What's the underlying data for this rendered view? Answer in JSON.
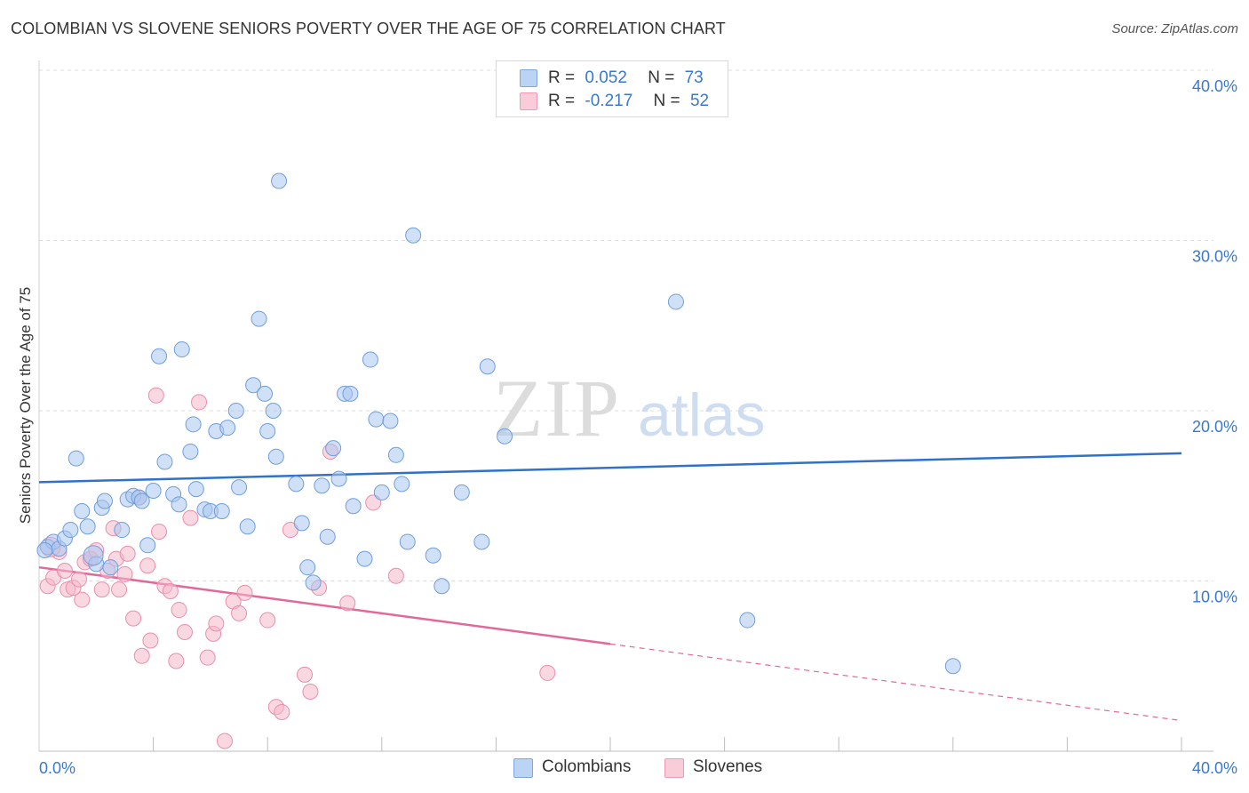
{
  "header": {
    "title": "COLOMBIAN VS SLOVENE SENIORS POVERTY OVER THE AGE OF 75 CORRELATION CHART",
    "source": "Source: ZipAtlas.com"
  },
  "legend": {
    "r_label": "R =",
    "n_label": "N =",
    "colombians": {
      "r": "0.052",
      "n": "73"
    },
    "slovenes": {
      "r": "-0.217",
      "n": "52"
    }
  },
  "watermark": {
    "zip": "ZIP",
    "atlas": "atlas"
  },
  "colors": {
    "blue_fill": "#a9c7f0",
    "blue_stroke": "#6f9fdc",
    "blue_line": "#2f72c8",
    "pink_fill": "#f5b8cb",
    "pink_stroke": "#ea8faa",
    "pink_line": "#e2689a",
    "axis_label": "#3a78d0"
  },
  "chart_data": {
    "type": "scatter",
    "title": "COLOMBIAN VS SLOVENE SENIORS POVERTY OVER THE AGE OF 75 CORRELATION CHART",
    "xlabel": "",
    "ylabel": "Seniors Poverty Over the Age of 75",
    "xlim": [
      0,
      40
    ],
    "ylim": [
      0,
      40
    ],
    "x_tick_labels": [
      "0.0%",
      "40.0%"
    ],
    "y_tick_labels": [
      "10.0%",
      "20.0%",
      "30.0%",
      "40.0%"
    ],
    "y_ticks": [
      10,
      20,
      30,
      40
    ],
    "grid": true,
    "legend_position": "top-center",
    "series": [
      {
        "name": "Colombians",
        "color": "#a9c7f0",
        "r": 0.052,
        "n": 73,
        "trend": {
          "x": [
            0,
            40
          ],
          "y": [
            15.8,
            17.5
          ],
          "style": "solid"
        },
        "points": [
          [
            0.3,
            12.0
          ],
          [
            0.5,
            12.3
          ],
          [
            0.7,
            11.9
          ],
          [
            0.9,
            12.5
          ],
          [
            1.1,
            13.0
          ],
          [
            1.3,
            17.2
          ],
          [
            1.5,
            14.1
          ],
          [
            1.7,
            13.2
          ],
          [
            2.0,
            11.0
          ],
          [
            2.2,
            14.3
          ],
          [
            2.3,
            14.7
          ],
          [
            2.5,
            10.8
          ],
          [
            2.9,
            13.0
          ],
          [
            3.1,
            14.8
          ],
          [
            3.3,
            15.0
          ],
          [
            3.5,
            14.9
          ],
          [
            3.6,
            14.7
          ],
          [
            3.8,
            12.1
          ],
          [
            4.0,
            15.3
          ],
          [
            4.2,
            23.2
          ],
          [
            4.4,
            17.0
          ],
          [
            4.7,
            15.1
          ],
          [
            4.9,
            14.5
          ],
          [
            5.0,
            23.6
          ],
          [
            5.3,
            17.6
          ],
          [
            5.4,
            19.2
          ],
          [
            5.5,
            15.4
          ],
          [
            5.8,
            14.2
          ],
          [
            6.0,
            14.1
          ],
          [
            6.2,
            18.8
          ],
          [
            6.4,
            14.1
          ],
          [
            6.6,
            19.0
          ],
          [
            6.9,
            20.0
          ],
          [
            7.0,
            15.5
          ],
          [
            7.3,
            13.2
          ],
          [
            7.5,
            21.5
          ],
          [
            7.7,
            25.4
          ],
          [
            7.9,
            21.0
          ],
          [
            8.0,
            18.8
          ],
          [
            8.2,
            20.0
          ],
          [
            8.3,
            17.3
          ],
          [
            8.4,
            33.5
          ],
          [
            9.0,
            15.7
          ],
          [
            9.2,
            13.4
          ],
          [
            9.4,
            10.8
          ],
          [
            9.6,
            9.9
          ],
          [
            9.9,
            15.6
          ],
          [
            10.1,
            12.6
          ],
          [
            10.3,
            17.8
          ],
          [
            10.5,
            16.0
          ],
          [
            10.7,
            21.0
          ],
          [
            10.9,
            21.0
          ],
          [
            11.0,
            14.4
          ],
          [
            11.4,
            11.3
          ],
          [
            11.6,
            23.0
          ],
          [
            11.8,
            19.5
          ],
          [
            12.0,
            15.2
          ],
          [
            12.3,
            19.4
          ],
          [
            12.5,
            17.4
          ],
          [
            12.7,
            15.7
          ],
          [
            12.9,
            12.3
          ],
          [
            13.1,
            30.3
          ],
          [
            13.8,
            11.5
          ],
          [
            14.1,
            9.7
          ],
          [
            14.8,
            15.2
          ],
          [
            15.5,
            12.3
          ],
          [
            15.7,
            22.6
          ],
          [
            16.3,
            18.5
          ],
          [
            22.3,
            26.4
          ],
          [
            24.8,
            7.7
          ],
          [
            32.0,
            5.0
          ],
          [
            0.2,
            11.8
          ],
          [
            1.9,
            11.5
          ]
        ]
      },
      {
        "name": "Slovenes",
        "color": "#f5b8cb",
        "r": -0.217,
        "n": 52,
        "trend": {
          "x": [
            0,
            20
          ],
          "y": [
            10.8,
            6.3
          ],
          "style": "solid",
          "extension": {
            "x": [
              20,
              40
            ],
            "y": [
              6.3,
              1.8
            ],
            "style": "dashed"
          }
        },
        "points": [
          [
            0.3,
            9.7
          ],
          [
            0.5,
            10.2
          ],
          [
            0.7,
            11.7
          ],
          [
            0.9,
            10.6
          ],
          [
            1.0,
            9.5
          ],
          [
            1.2,
            9.6
          ],
          [
            1.4,
            10.1
          ],
          [
            1.5,
            8.9
          ],
          [
            1.6,
            11.1
          ],
          [
            1.8,
            11.3
          ],
          [
            2.0,
            11.8
          ],
          [
            2.2,
            9.5
          ],
          [
            2.4,
            10.6
          ],
          [
            2.6,
            13.1
          ],
          [
            2.7,
            11.3
          ],
          [
            2.8,
            9.5
          ],
          [
            3.0,
            10.4
          ],
          [
            3.1,
            11.6
          ],
          [
            3.3,
            7.8
          ],
          [
            3.5,
            14.9
          ],
          [
            3.6,
            5.6
          ],
          [
            3.8,
            10.9
          ],
          [
            3.9,
            6.5
          ],
          [
            4.1,
            20.9
          ],
          [
            4.2,
            12.9
          ],
          [
            4.4,
            9.7
          ],
          [
            4.6,
            9.4
          ],
          [
            4.8,
            5.3
          ],
          [
            4.9,
            8.3
          ],
          [
            5.1,
            7.0
          ],
          [
            5.3,
            13.7
          ],
          [
            5.6,
            20.5
          ],
          [
            5.9,
            5.5
          ],
          [
            6.1,
            6.9
          ],
          [
            6.2,
            7.5
          ],
          [
            6.5,
            0.6
          ],
          [
            6.8,
            8.8
          ],
          [
            7.0,
            8.1
          ],
          [
            7.2,
            9.3
          ],
          [
            8.0,
            7.7
          ],
          [
            8.3,
            2.6
          ],
          [
            8.5,
            2.3
          ],
          [
            8.8,
            13.0
          ],
          [
            9.3,
            4.5
          ],
          [
            9.5,
            3.5
          ],
          [
            9.8,
            9.6
          ],
          [
            10.2,
            17.6
          ],
          [
            10.8,
            8.7
          ],
          [
            11.7,
            14.6
          ],
          [
            12.5,
            10.3
          ],
          [
            17.8,
            4.6
          ],
          [
            0.4,
            12.0
          ]
        ]
      }
    ]
  }
}
